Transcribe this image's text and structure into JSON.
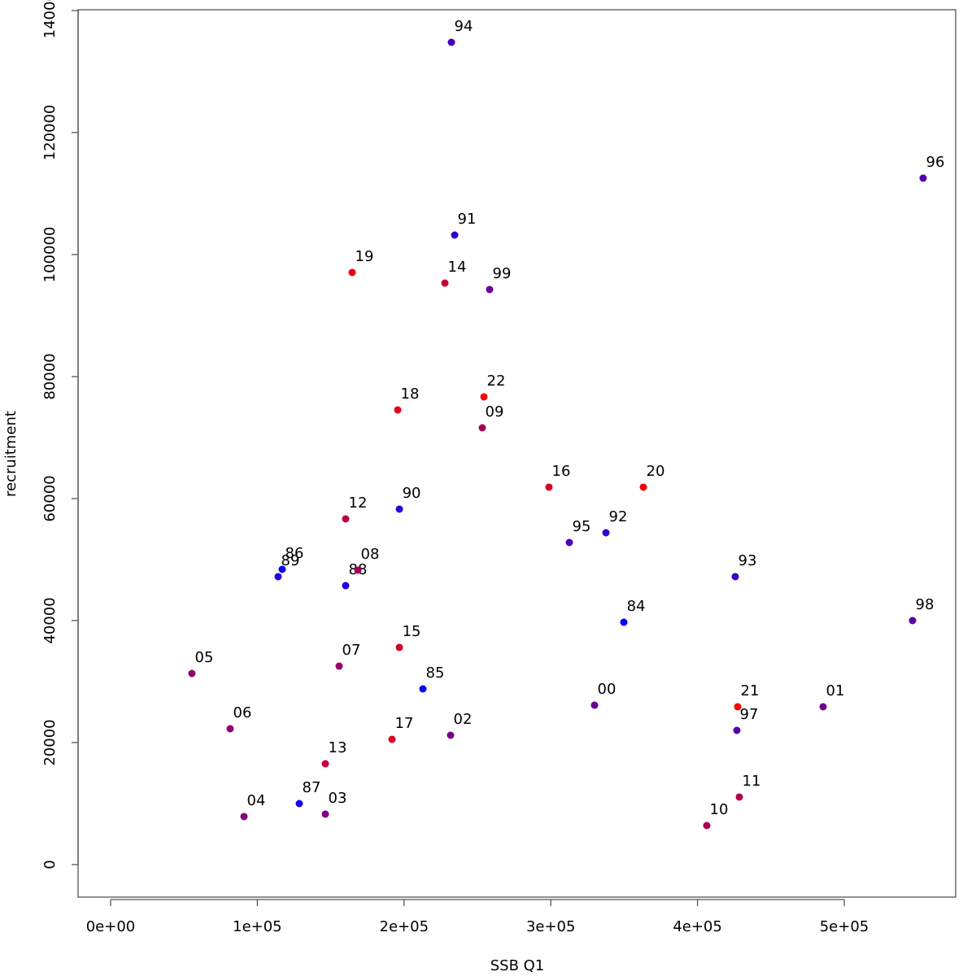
{
  "chart_data": {
    "type": "scatter",
    "x_label": "SSB Q1",
    "y_label": "recruitment",
    "labels": [
      "84",
      "85",
      "86",
      "87",
      "88",
      "89",
      "90",
      "91",
      "92",
      "93",
      "94",
      "95",
      "96",
      "97",
      "98",
      "99",
      "00",
      "01",
      "02",
      "03",
      "04",
      "05",
      "06",
      "07",
      "08",
      "09",
      "10",
      "11",
      "12",
      "13",
      "14",
      "15",
      "16",
      "17",
      "18",
      "19",
      "20",
      "21",
      "22"
    ],
    "x": [
      349800,
      212860,
      116960,
      128600,
      160200,
      114190,
      196800,
      234480,
      337580,
      425720,
      232260,
      312640,
      553770,
      426830,
      546560,
      258310,
      329820,
      485590,
      231710,
      146340,
      90910,
      55430,
      81490,
      155760,
      168510,
      253330,
      406320,
      428490,
      160200,
      146340,
      227830,
      196800,
      298780,
      191800,
      195680,
      164630,
      363080,
      427380,
      254430
    ],
    "y": [
      39730,
      28800,
      48400,
      10000,
      45730,
      47200,
      58270,
      103200,
      54400,
      47200,
      134800,
      52800,
      112530,
      22000,
      40000,
      94270,
      26130,
      25870,
      21200,
      8270,
      7870,
      31330,
      22270,
      32530,
      48270,
      71600,
      6400,
      11070,
      56670,
      16530,
      95330,
      35600,
      61870,
      20530,
      74530,
      97070,
      61870,
      25870,
      76670
    ],
    "colors": [
      "#0000ff",
      "#0700f8",
      "#0d00f2",
      "#1400eb",
      "#1b00e4",
      "#2200dd",
      "#2800d7",
      "#2f00d0",
      "#3600c9",
      "#3c00c3",
      "#4300bc",
      "#4a00b5",
      "#5100ae",
      "#5700a8",
      "#5e00a1",
      "#65009a",
      "#6b0094",
      "#72008d",
      "#790086",
      "#80007f",
      "#860079",
      "#8d0072",
      "#94006b",
      "#9a0065",
      "#a1005e",
      "#a80057",
      "#ae0051",
      "#b5004a",
      "#bc0043",
      "#c3003c",
      "#c90036",
      "#d0002f",
      "#d70028",
      "#dd0022",
      "#e4001b",
      "#eb0014",
      "#f2000d",
      "#f80007",
      "#ff0000"
    ],
    "xlim": [
      -22170,
      575940
    ],
    "ylim": [
      -5333,
      140133
    ],
    "xticks": [
      {
        "value": 0,
        "label": "0e+00"
      },
      {
        "value": 100000,
        "label": "1e+05"
      },
      {
        "value": 200000,
        "label": "2e+05"
      },
      {
        "value": 300000,
        "label": "3e+05"
      },
      {
        "value": 400000,
        "label": "4e+05"
      },
      {
        "value": 500000,
        "label": "5e+05"
      }
    ],
    "yticks": [
      0,
      20000,
      40000,
      60000,
      80000,
      100000,
      120000,
      140000
    ]
  }
}
